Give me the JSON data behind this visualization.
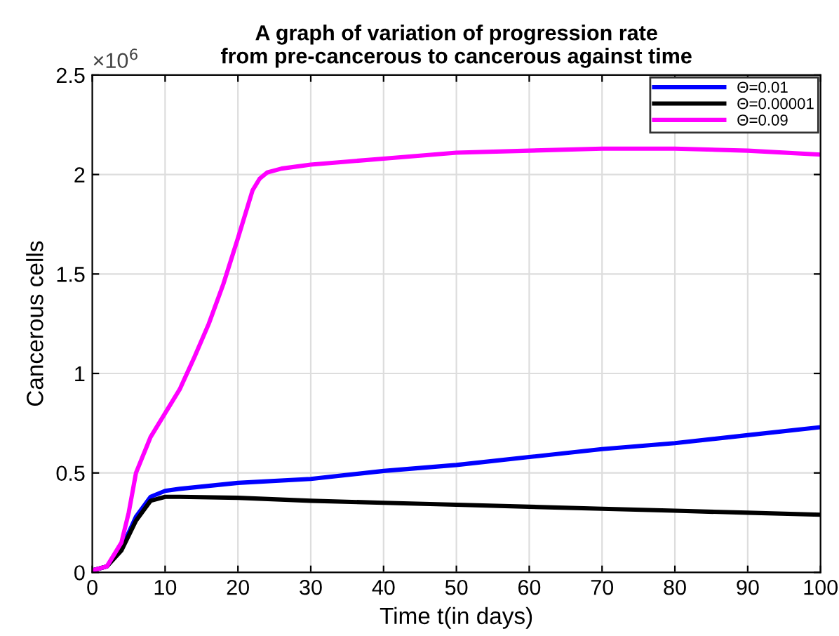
{
  "chart_data": {
    "type": "line",
    "title": "A graph of variation of progression rate\nfrom pre-cancerous to cancerous against time",
    "xlabel": "Time t(in days)",
    "ylabel": "Cancerous cells",
    "annotations": [
      "×10$^{6}$"
    ],
    "xlim": [
      0,
      100
    ],
    "xticks": [
      0,
      10,
      20,
      30,
      40,
      50,
      60,
      70,
      80,
      90,
      100
    ],
    "ylim": [
      0,
      2.5
    ],
    "yticks": [
      0,
      0.5,
      1,
      1.5,
      2,
      2.5
    ],
    "grid": true,
    "legend": "top right",
    "line_style": "solid",
    "marker": "none",
    "series": [
      {
        "name": "Θ=0.01",
        "color": "#0000ff",
        "x": [
          0,
          2,
          4,
          6,
          8,
          10,
          12,
          20,
          30,
          40,
          50,
          60,
          70,
          80,
          90,
          100
        ],
        "values": [
          0.01,
          0.03,
          0.12,
          0.28,
          0.38,
          0.41,
          0.42,
          0.45,
          0.47,
          0.51,
          0.54,
          0.58,
          0.62,
          0.65,
          0.69,
          0.73
        ]
      },
      {
        "name": "Θ=0.00001",
        "color": "#000000",
        "x": [
          0,
          2,
          4,
          6,
          8,
          10,
          12,
          20,
          30,
          40,
          50,
          60,
          70,
          80,
          90,
          100
        ],
        "values": [
          0.01,
          0.03,
          0.11,
          0.26,
          0.36,
          0.38,
          0.38,
          0.375,
          0.36,
          0.35,
          0.34,
          0.33,
          0.32,
          0.31,
          0.3,
          0.29
        ]
      },
      {
        "name": "Θ=0.09",
        "color": "#ff00ff",
        "x": [
          0,
          2,
          4,
          5,
          6,
          8,
          10,
          12,
          14,
          16,
          18,
          20,
          22,
          23,
          24,
          26,
          30,
          40,
          50,
          60,
          70,
          80,
          90,
          100
        ],
        "values": [
          0.01,
          0.03,
          0.15,
          0.3,
          0.5,
          0.68,
          0.8,
          0.92,
          1.08,
          1.25,
          1.45,
          1.68,
          1.92,
          1.98,
          2.01,
          2.03,
          2.05,
          2.08,
          2.11,
          2.12,
          2.13,
          2.13,
          2.12,
          2.1
        ]
      }
    ]
  }
}
